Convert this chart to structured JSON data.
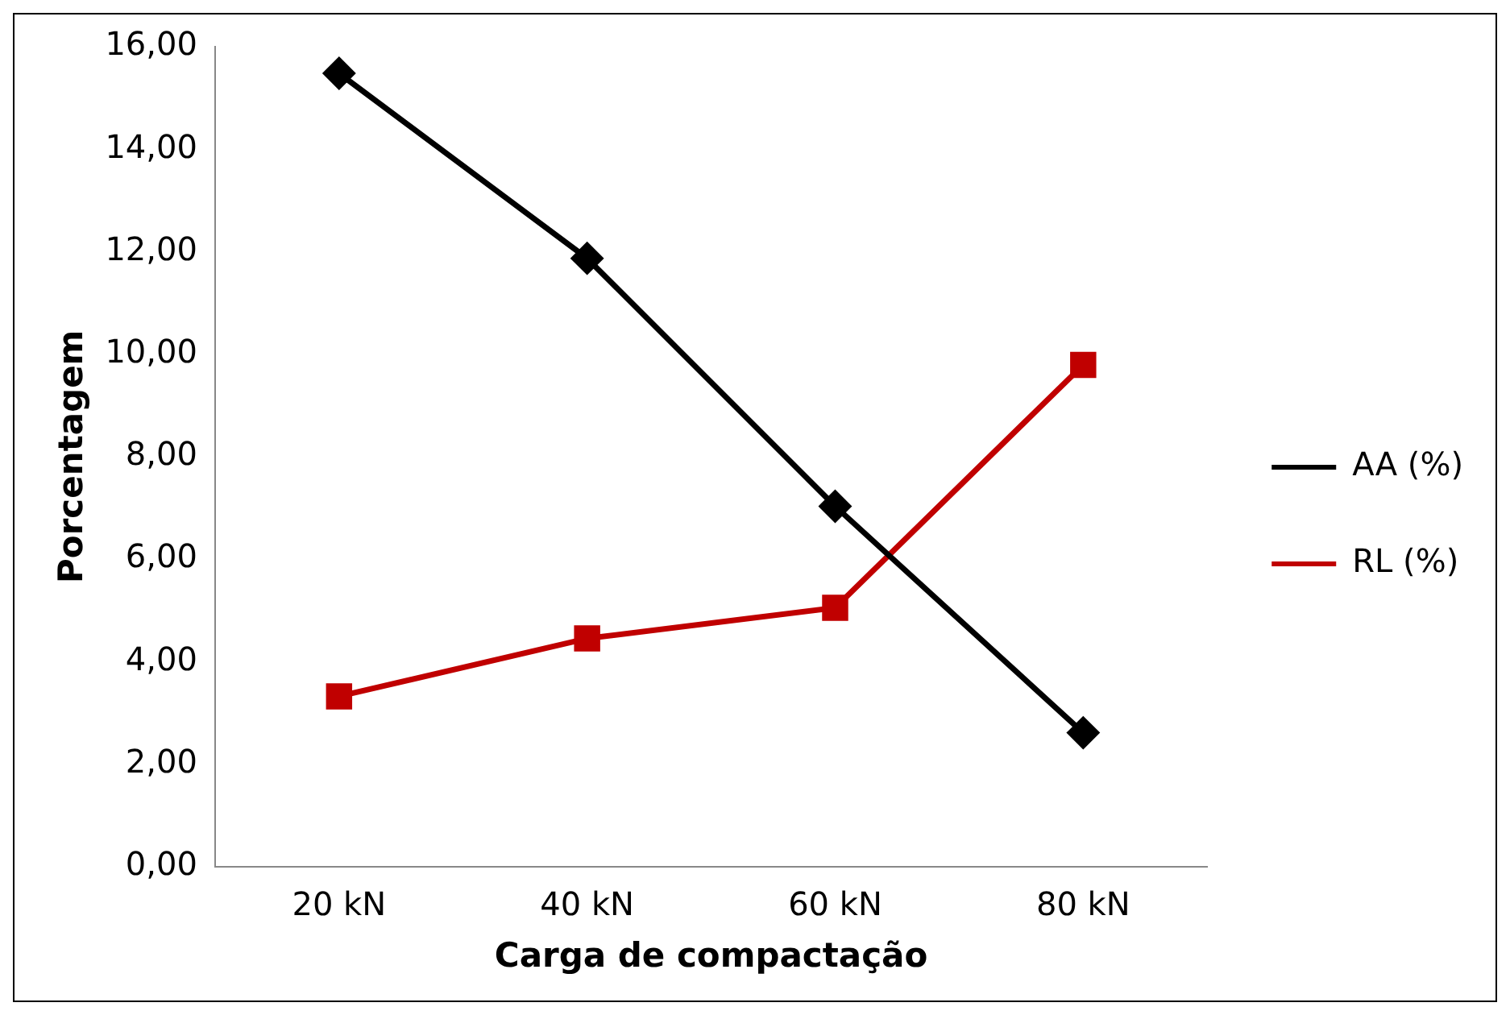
{
  "chart_data": {
    "type": "line",
    "xlabel": "Carga de compactação",
    "ylabel": "Porcentagem",
    "categories": [
      "20 kN",
      "40 kN",
      "60 kN",
      "80 kN"
    ],
    "series": [
      {
        "name": "AA (%)",
        "color": "#000000",
        "marker": "diamond",
        "values": [
          15.48,
          11.87,
          7.03,
          2.61
        ]
      },
      {
        "name": "RL (%)",
        "color": "#c00000",
        "marker": "square",
        "values": [
          3.32,
          4.45,
          5.05,
          9.79
        ]
      }
    ],
    "ylim": [
      0,
      16
    ],
    "yticks": [
      {
        "value": 0,
        "label": "0,00"
      },
      {
        "value": 2,
        "label": "2,00"
      },
      {
        "value": 4,
        "label": "4,00"
      },
      {
        "value": 6,
        "label": "6,00"
      },
      {
        "value": 8,
        "label": "8,00"
      },
      {
        "value": 10,
        "label": "10,00"
      },
      {
        "value": 12,
        "label": "12,00"
      },
      {
        "value": 14,
        "label": "14,00"
      },
      {
        "value": 16,
        "label": "16,00"
      }
    ],
    "grid": false,
    "legend": "right",
    "line_style": "solid"
  }
}
